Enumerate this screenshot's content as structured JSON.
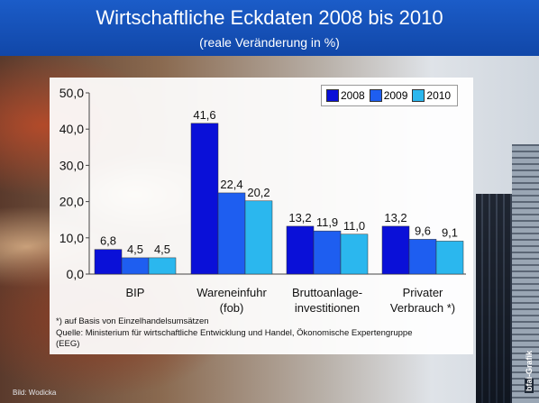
{
  "title": "Wirtschaftliche Eckdaten 2008 bis 2010",
  "subtitle": "(reale Veränderung in %)",
  "credit": "Bild: Wodicka",
  "agency": "bfai-Grafik",
  "notes": [
    "*) auf Basis von Einzelhandelsumsätzen",
    "Quelle: Ministerium für wirtschaftliche Entwicklung und Handel, Ökonomische Expertengruppe",
    "(EEG)"
  ],
  "colors": {
    "2008": "#0a10d8",
    "2009": "#1e5ef0",
    "2010": "#2bb7ee"
  },
  "chart_data": {
    "type": "bar",
    "title": "Wirtschaftliche Eckdaten 2008 bis 2010",
    "subtitle": "(reale Veränderung in %)",
    "categories": [
      [
        "BIP"
      ],
      [
        "Wareneinfuhr",
        "(fob)"
      ],
      [
        "Bruttoanlage-",
        "investitionen"
      ],
      [
        "Privater",
        "Verbrauch *)"
      ]
    ],
    "series": [
      {
        "name": "2008",
        "values": [
          6.8,
          41.6,
          13.2,
          13.2
        ],
        "labels": [
          "6,8",
          "41,6",
          "13,2",
          "13,2"
        ]
      },
      {
        "name": "2009",
        "values": [
          4.5,
          22.4,
          11.9,
          9.6
        ],
        "labels": [
          "4,5",
          "22,4",
          "11,9",
          "9,6"
        ]
      },
      {
        "name": "2010",
        "values": [
          4.5,
          20.2,
          11.0,
          9.1
        ],
        "labels": [
          "4,5",
          "20,2",
          "11,0",
          "9,1"
        ]
      }
    ],
    "ylim": [
      0,
      50
    ],
    "yticks": [
      "0,0",
      "10,0",
      "20,0",
      "30,0",
      "40,0",
      "50,0"
    ],
    "legend": "top-right",
    "grid": false
  }
}
